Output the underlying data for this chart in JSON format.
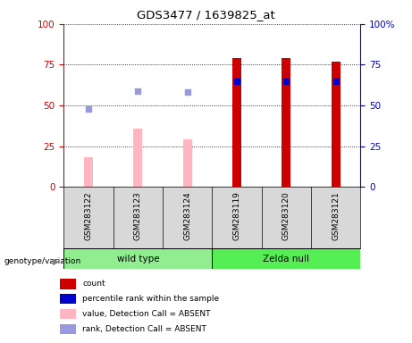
{
  "title": "GDS3477 / 1639825_at",
  "samples": [
    "GSM283122",
    "GSM283123",
    "GSM283124",
    "GSM283119",
    "GSM283120",
    "GSM283121"
  ],
  "bar_values_absent": [
    18,
    36,
    29,
    0,
    0,
    0
  ],
  "bar_values_present": [
    0,
    0,
    0,
    79,
    79,
    77
  ],
  "rank_absent": [
    48,
    59,
    58,
    0,
    0,
    0
  ],
  "rank_present": [
    0,
    0,
    0,
    65,
    65,
    65
  ],
  "ylim": [
    0,
    100
  ],
  "yticks": [
    0,
    25,
    50,
    75,
    100
  ],
  "left_axis_color": "#cc0000",
  "right_axis_color": "#0000cc",
  "bar_color_absent": "#ffb6c1",
  "bar_color_present": "#cc0000",
  "dot_color_absent": "#9999dd",
  "dot_color_present": "#0000cc",
  "background_color": "#d8d8d8",
  "wt_color": "#90ee90",
  "zn_color": "#55ee55",
  "legend_items": [
    {
      "label": "count",
      "color": "#cc0000"
    },
    {
      "label": "percentile rank within the sample",
      "color": "#0000cc"
    },
    {
      "label": "value, Detection Call = ABSENT",
      "color": "#ffb6c1"
    },
    {
      "label": "rank, Detection Call = ABSENT",
      "color": "#9999dd"
    }
  ]
}
